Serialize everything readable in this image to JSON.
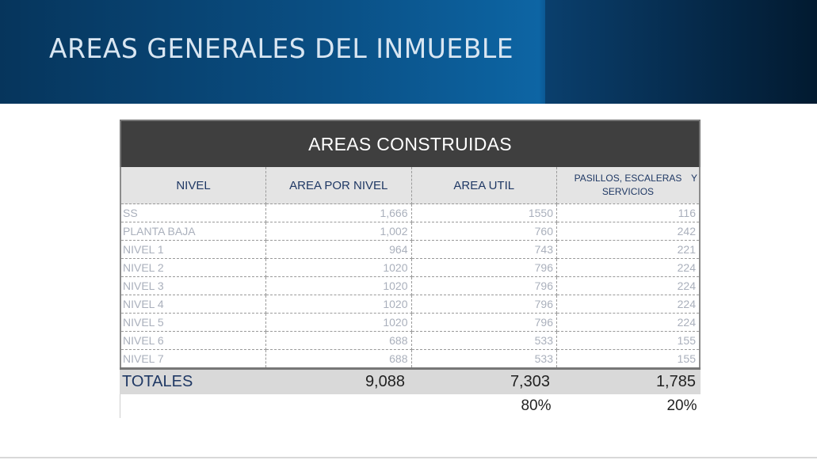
{
  "header": {
    "title": "AREAS GENERALES DEL INMUEBLE"
  },
  "table": {
    "title": "AREAS CONSTRUIDAS",
    "columns": {
      "nivel": "NIVEL",
      "area_por_nivel": "AREA POR NIVEL",
      "area_util": "AREA UTIL",
      "pasillos": "PASILLOS, ESCALERAS",
      "pasillos_y": "Y",
      "servicios": "SERVICIOS"
    },
    "rows": [
      {
        "nivel": "SS",
        "area": "1,666",
        "util": "1550",
        "pasillos": "116"
      },
      {
        "nivel": "PLANTA BAJA",
        "area": "1,002",
        "util": "760",
        "pasillos": "242"
      },
      {
        "nivel": "NIVEL 1",
        "area": "964",
        "util": "743",
        "pasillos": "221"
      },
      {
        "nivel": "NIVEL 2",
        "area": "1020",
        "util": "796",
        "pasillos": "224"
      },
      {
        "nivel": "NIVEL 3",
        "area": "1020",
        "util": "796",
        "pasillos": "224"
      },
      {
        "nivel": "NIVEL 4",
        "area": "1020",
        "util": "796",
        "pasillos": "224"
      },
      {
        "nivel": "NIVEL 5",
        "area": "1020",
        "util": "796",
        "pasillos": "224"
      },
      {
        "nivel": "NIVEL 6",
        "area": "688",
        "util": "533",
        "pasillos": "155"
      },
      {
        "nivel": "NIVEL 7",
        "area": "688",
        "util": "533",
        "pasillos": "155"
      }
    ],
    "totals": {
      "label": "TOTALES",
      "area": "9,088",
      "util": "7,303",
      "pasillos": "1,785"
    },
    "percentages": {
      "util": "80%",
      "pasillos": "20%"
    }
  }
}
